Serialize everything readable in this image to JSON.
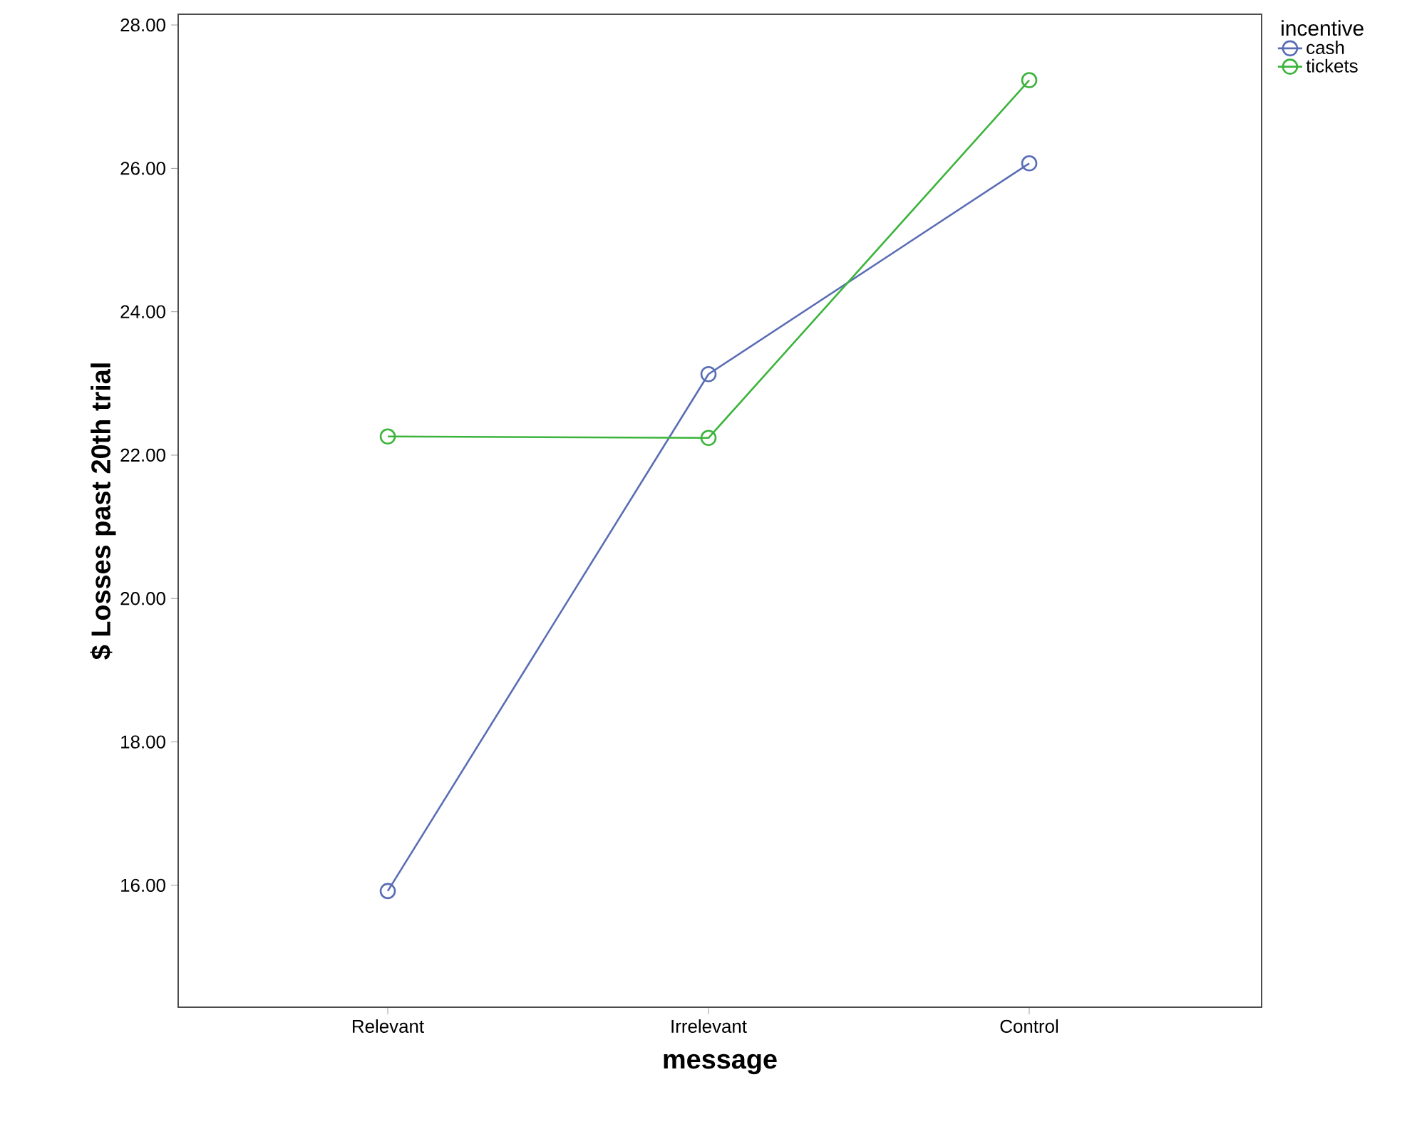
{
  "chart_data": {
    "type": "line",
    "xlabel": "message",
    "ylabel": "$ Losses past 20th trial",
    "legend_title": "incentive",
    "categories": [
      "Relevant",
      "Irrelevant",
      "Control"
    ],
    "series": [
      {
        "name": "cash",
        "color": "#5a6db5",
        "values": [
          15.92,
          23.13,
          26.07
        ]
      },
      {
        "name": "tickets",
        "color": "#3cb43c",
        "values": [
          22.26,
          22.24,
          27.23
        ]
      }
    ],
    "ylim": [
      14.3,
      28.15
    ],
    "yticks": [
      {
        "value": 16,
        "label": "16.00"
      },
      {
        "value": 18,
        "label": "18.00"
      },
      {
        "value": 20,
        "label": "20.00"
      },
      {
        "value": 22,
        "label": "22.00"
      },
      {
        "value": 24,
        "label": "24.00"
      },
      {
        "value": 26,
        "label": "26.00"
      },
      {
        "value": 28,
        "label": "28.00"
      }
    ],
    "grid": false,
    "legend": "top right",
    "marker": "circle",
    "line_style": "solid"
  }
}
